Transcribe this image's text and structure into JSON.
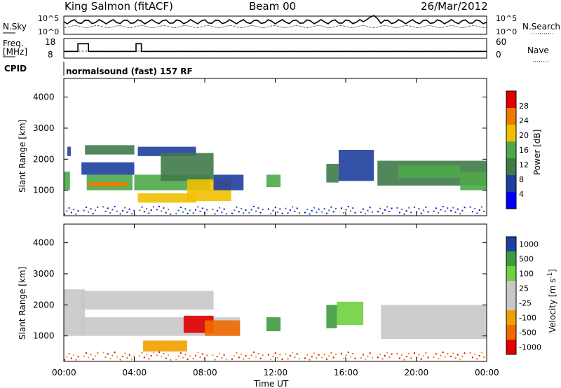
{
  "header": {
    "station": "King Salmon (fitACF)",
    "beam": "Beam 00",
    "date": "26/Mar/2012"
  },
  "noise_panel": {
    "left_label": "N.Sky",
    "right_label": "N.Search",
    "left_ticks": [
      "10^5",
      "10^0"
    ],
    "right_ticks": [
      "10^5",
      "10^0"
    ]
  },
  "freq_panel": {
    "left_label_1": "Freq.",
    "left_label_2": "[MHz]",
    "right_label": "Nave",
    "left_ticks": [
      "18",
      "8"
    ],
    "right_ticks": [
      "60",
      "0"
    ],
    "freq_steps": [
      {
        "t_start": 0.0,
        "t_end": 0.8,
        "value": 11
      },
      {
        "t_start": 0.8,
        "t_end": 1.4,
        "value": 16
      },
      {
        "t_start": 1.4,
        "t_end": 4.1,
        "value": 11
      },
      {
        "t_start": 4.1,
        "t_end": 4.4,
        "value": 16
      },
      {
        "t_start": 4.4,
        "t_end": 24.0,
        "value": 11
      }
    ]
  },
  "cpid": {
    "label": "CPID",
    "text": "normalsound (fast) 157 RF"
  },
  "x_axis": {
    "label": "Time UT",
    "ticks": [
      "00:00",
      "04:00",
      "08:00",
      "12:00",
      "16:00",
      "20:00",
      "00:00"
    ],
    "range_hours": [
      0,
      24
    ]
  },
  "chart_data": [
    {
      "type": "heatmap",
      "name": "power",
      "ylabel": "Slant Range [km]",
      "ylim": [
        180,
        4600
      ],
      "yticks": [
        "4000",
        "3000",
        "2000",
        "1000"
      ],
      "colorbar_label": "Power [dB]",
      "colorbar_ticks": [
        "28",
        "24",
        "20",
        "16",
        "12",
        "8",
        "4"
      ],
      "colorbar_colors": [
        "#0000ff",
        "#1f3fa0",
        "#3f7a4a",
        "#4ea84a",
        "#f0c000",
        "#f07a00",
        "#e00000"
      ],
      "regions": [
        {
          "t_start": 0.0,
          "t_end": 0.35,
          "r_start": 1000,
          "r_end": 1600,
          "level": 3
        },
        {
          "t_start": 0.2,
          "t_end": 0.4,
          "r_start": 2100,
          "r_end": 2400,
          "level": 1
        },
        {
          "t_start": 1.0,
          "t_end": 4.0,
          "r_start": 1500,
          "r_end": 1900,
          "level": 1
        },
        {
          "t_start": 1.2,
          "t_end": 4.0,
          "r_start": 2150,
          "r_end": 2450,
          "level": 2
        },
        {
          "t_start": 1.3,
          "t_end": 3.9,
          "r_start": 1000,
          "r_end": 1500,
          "level": 3
        },
        {
          "t_start": 1.4,
          "t_end": 3.6,
          "r_start": 1120,
          "r_end": 1260,
          "level": 5
        },
        {
          "t_start": 4.0,
          "t_end": 8.3,
          "r_start": 1000,
          "r_end": 1500,
          "level": 3
        },
        {
          "t_start": 4.2,
          "t_end": 7.5,
          "r_start": 2100,
          "r_end": 2400,
          "level": 1
        },
        {
          "t_start": 4.2,
          "t_end": 7.5,
          "r_start": 600,
          "r_end": 900,
          "level": 4
        },
        {
          "t_start": 5.5,
          "t_end": 8.5,
          "r_start": 1300,
          "r_end": 2200,
          "level": 2
        },
        {
          "t_start": 7.0,
          "t_end": 9.5,
          "r_start": 650,
          "r_end": 1350,
          "level": 4
        },
        {
          "t_start": 8.5,
          "t_end": 10.2,
          "r_start": 1000,
          "r_end": 1500,
          "level": 1
        },
        {
          "t_start": 11.5,
          "t_end": 12.3,
          "r_start": 1100,
          "r_end": 1500,
          "level": 3
        },
        {
          "t_start": 14.9,
          "t_end": 15.6,
          "r_start": 1250,
          "r_end": 1850,
          "level": 2
        },
        {
          "t_start": 15.6,
          "t_end": 17.6,
          "r_start": 1300,
          "r_end": 2300,
          "level": 1
        },
        {
          "t_start": 17.8,
          "t_end": 24.0,
          "r_start": 1150,
          "r_end": 1950,
          "level": 2
        },
        {
          "t_start": 19.0,
          "t_end": 22.5,
          "r_start": 1400,
          "r_end": 1800,
          "level": 3
        },
        {
          "t_start": 22.5,
          "t_end": 24.0,
          "r_start": 1000,
          "r_end": 1600,
          "level": 3
        }
      ]
    },
    {
      "type": "heatmap",
      "name": "velocity",
      "ylabel": "Slant Range [km]",
      "ylim": [
        180,
        4600
      ],
      "yticks": [
        "4000",
        "3000",
        "2000",
        "1000"
      ],
      "colorbar_label": "Velocity [m s^-1]",
      "colorbar_ticks": [
        "1000",
        "500",
        "100",
        "25",
        "-25",
        "-100",
        "-500",
        "-1000"
      ],
      "colorbar_colors": [
        "#e00000",
        "#f06a00",
        "#f0a000",
        "#c8c8c8",
        "#c8c8c8",
        "#6fd040",
        "#3f9a3f",
        "#1f3fa0"
      ],
      "regions": [
        {
          "t_start": 0.0,
          "t_end": 1.2,
          "r_start": 1000,
          "r_end": 2500,
          "level": 3
        },
        {
          "t_start": 1.0,
          "t_end": 10.0,
          "r_start": 1000,
          "r_end": 1600,
          "level": 3
        },
        {
          "t_start": 1.0,
          "t_end": 8.5,
          "r_start": 1850,
          "r_end": 2450,
          "level": 3
        },
        {
          "t_start": 4.5,
          "t_end": 7.0,
          "r_start": 500,
          "r_end": 850,
          "level": 2
        },
        {
          "t_start": 6.8,
          "t_end": 8.5,
          "r_start": 1100,
          "r_end": 1650,
          "level": 0
        },
        {
          "t_start": 8.0,
          "t_end": 10.0,
          "r_start": 1000,
          "r_end": 1500,
          "level": 1
        },
        {
          "t_start": 11.5,
          "t_end": 12.3,
          "r_start": 1150,
          "r_end": 1600,
          "level": 6
        },
        {
          "t_start": 14.9,
          "t_end": 15.5,
          "r_start": 1250,
          "r_end": 2000,
          "level": 6
        },
        {
          "t_start": 15.5,
          "t_end": 17.0,
          "r_start": 1350,
          "r_end": 2100,
          "level": 5
        },
        {
          "t_start": 18.0,
          "t_end": 24.0,
          "r_start": 900,
          "r_end": 2000,
          "level": 3
        }
      ]
    }
  ]
}
